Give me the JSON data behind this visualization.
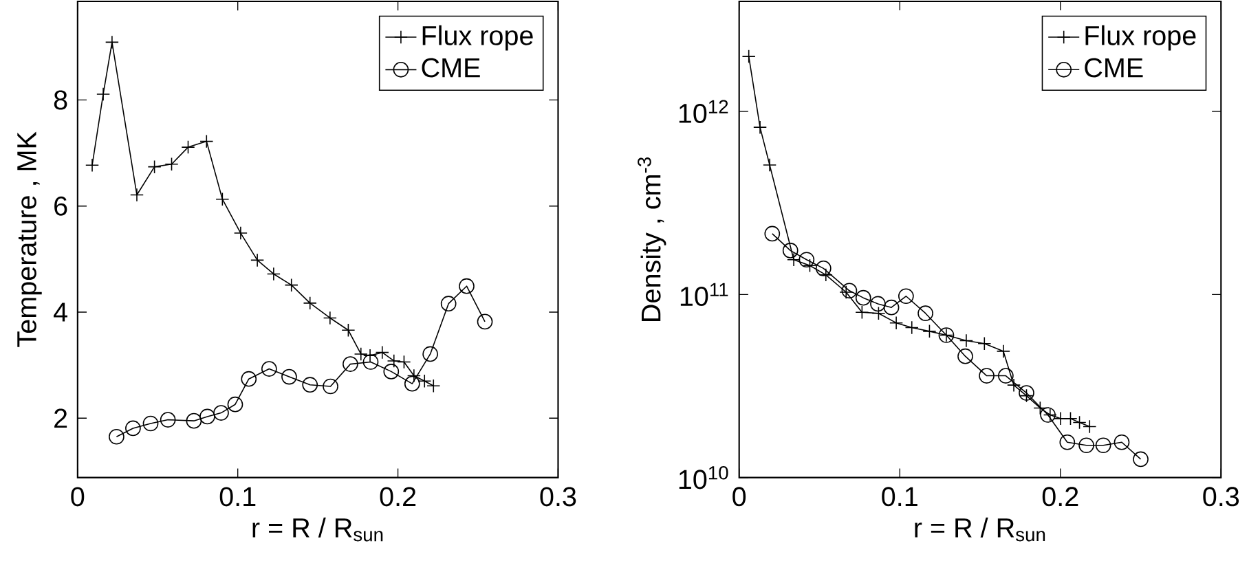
{
  "chart_data": [
    {
      "type": "line",
      "xlabel": "r = R / R$_{sun}$",
      "ylabel": "Temperature , MK",
      "xlim": [
        0,
        0.3
      ],
      "ylim": [
        0.88,
        9.86
      ],
      "xticks": [
        0,
        0.1,
        0.2,
        0.3
      ],
      "yticks": [
        2,
        4,
        6,
        8
      ],
      "legend": "top right",
      "series": [
        {
          "name": "Flux rope",
          "color": "#000000",
          "marker": "cross",
          "x": [
            0.0091,
            0.016,
            0.0215,
            0.037,
            0.048,
            0.0587,
            0.069,
            0.0805,
            0.0904,
            0.1018,
            0.1122,
            0.1224,
            0.1335,
            0.1451,
            0.1576,
            0.169,
            0.1769,
            0.1826,
            0.1902,
            0.1975,
            0.2038,
            0.21,
            0.2166,
            0.2222
          ],
          "values": [
            6.77,
            8.11,
            9.09,
            6.21,
            6.74,
            6.79,
            7.11,
            7.22,
            6.13,
            5.49,
            4.98,
            4.72,
            4.51,
            4.17,
            3.89,
            3.66,
            3.21,
            3.18,
            3.24,
            3.08,
            3.06,
            2.8,
            2.7,
            2.61
          ]
        },
        {
          "name": "CME",
          "color": "#000000",
          "marker": "circle",
          "x": [
            0.0243,
            0.0346,
            0.0456,
            0.0564,
            0.0726,
            0.081,
            0.0896,
            0.0984,
            0.1069,
            0.1196,
            0.1321,
            0.1451,
            0.1579,
            0.1703,
            0.183,
            0.1958,
            0.2089,
            0.2202,
            0.2316,
            0.2429,
            0.2543
          ],
          "values": [
            1.65,
            1.81,
            1.9,
            1.97,
            1.95,
            2.03,
            2.1,
            2.26,
            2.74,
            2.93,
            2.78,
            2.63,
            2.6,
            3.02,
            3.06,
            2.88,
            2.65,
            3.21,
            4.16,
            4.49,
            3.82
          ]
        }
      ]
    },
    {
      "type": "line",
      "xlabel": "r = R / R$_{sun}$",
      "ylabel": "Density , cm$^{-3}$",
      "log": true,
      "xlim": [
        0,
        0.3
      ],
      "ylim": [
        10000000000.0,
        4000000000000.0
      ],
      "xticks": [
        0,
        0.1,
        0.2,
        0.3
      ],
      "yticks": [
        {
          "value": 10000000000.0,
          "label": "10$^{10}$"
        },
        {
          "value": 100000000000.0,
          "label": "10$^{11}$"
        },
        {
          "value": 1000000000000.0,
          "label": "10$^{12}$"
        }
      ],
      "legend": "top right",
      "series": [
        {
          "name": "Flux rope",
          "color": "#000000",
          "marker": "cross",
          "x": [
            0.006,
            0.013,
            0.019,
            0.034,
            0.044,
            0.054,
            0.0666,
            0.0765,
            0.0868,
            0.0978,
            0.1075,
            0.1185,
            0.129,
            0.1414,
            0.1527,
            0.1645,
            0.171,
            0.1789,
            0.1874,
            0.1936,
            0.2001,
            0.2063,
            0.2119,
            0.2182
          ],
          "values": [
            2000000000000.0,
            820000000000.0,
            510000000000.0,
            155000000000.0,
            144000000000.0,
            128000000000.0,
            103000000000.0,
            80000000000.0,
            79000000000.0,
            70000000000.0,
            66000000000.0,
            63000000000.0,
            60000000000.0,
            56000000000.0,
            54000000000.0,
            49000000000.0,
            32000000000.0,
            28000000000.0,
            24000000000.0,
            22000000000.0,
            21000000000.0,
            21000000000.0,
            20000000000.0,
            19000000000.0
          ]
        },
        {
          "name": "CME",
          "color": "#000000",
          "marker": "circle",
          "x": [
            0.0206,
            0.0319,
            0.042,
            0.0525,
            0.0686,
            0.0773,
            0.0864,
            0.0948,
            0.1039,
            0.116,
            0.129,
            0.1408,
            0.1541,
            0.166,
            0.1789,
            0.1922,
            0.2043,
            0.2162,
            0.2267,
            0.2382,
            0.25
          ],
          "values": [
            215000000000.0,
            174000000000.0,
            155000000000.0,
            139000000000.0,
            105000000000.0,
            96000000000.0,
            89000000000.0,
            85000000000.0,
            98000000000.0,
            79000000000.0,
            60000000000.0,
            46000000000.0,
            36000000000.0,
            36000000000.0,
            29000000000.0,
            22000000000.0,
            15600000000.0,
            15000000000.0,
            15000000000.0,
            15600000000.0,
            12600000000.0
          ]
        }
      ]
    }
  ]
}
